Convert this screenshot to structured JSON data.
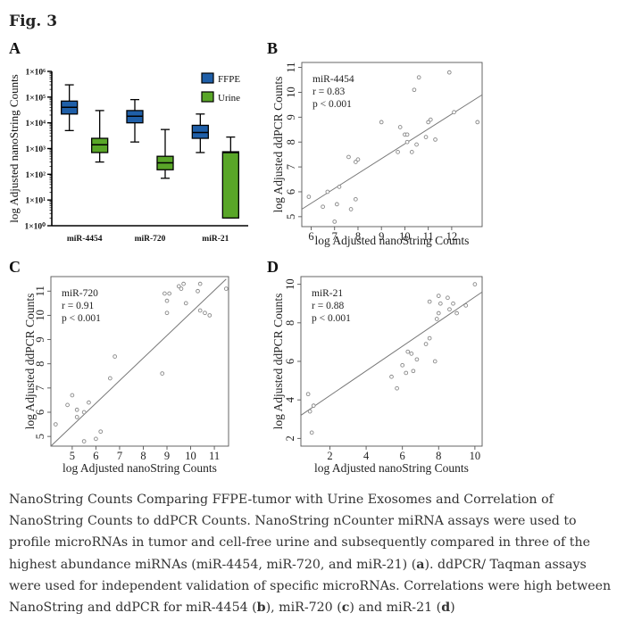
{
  "figure": {
    "title": "Fig. 3"
  },
  "chart_data": [
    {
      "panel": "A",
      "type": "box",
      "ylabel": "log Adjusted nanoString Counts",
      "yscale": "log10",
      "ylim": [
        1,
        1000000
      ],
      "ytick_labels": [
        "1×10⁰",
        "1×10¹",
        "1×10²",
        "1×10³",
        "1×10⁴",
        "1×10⁵",
        "1×10⁶"
      ],
      "categories": [
        "miR-4454",
        "miR-720",
        "miR-21"
      ],
      "legend": [
        {
          "name": "FFPE",
          "color": "#1f5fa8"
        },
        {
          "name": "Urine",
          "color": "#59a628"
        }
      ],
      "series": [
        {
          "name": "FFPE",
          "color": "#1f5fa8",
          "boxes": [
            {
              "whislo": 5000,
              "q1": 22000,
              "med": 40000,
              "q3": 70000,
              "whishi": 300000
            },
            {
              "whislo": 1800,
              "q1": 10000,
              "med": 18000,
              "q3": 30000,
              "whishi": 80000
            },
            {
              "whislo": 700,
              "q1": 2500,
              "med": 4200,
              "q3": 8000,
              "whishi": 22000
            }
          ]
        },
        {
          "name": "Urine",
          "color": "#59a628",
          "boxes": [
            {
              "whislo": 300,
              "q1": 700,
              "med": 1400,
              "q3": 2500,
              "whishi": 30000
            },
            {
              "whislo": 70,
              "q1": 150,
              "med": 280,
              "q3": 500,
              "whishi": 5500
            },
            {
              "whislo": 2,
              "q1": 2,
              "med": 700,
              "q3": 750,
              "whishi": 2800
            }
          ]
        }
      ]
    },
    {
      "panel": "B",
      "type": "scatter",
      "annotation": [
        "miR-4454",
        "r = 0.83",
        "p < 0.001"
      ],
      "xlabel": "log Adjusted nanoString Counts",
      "ylabel": "log Adjusted ddPCR Counts",
      "xlim": [
        5.6,
        13.3
      ],
      "ylim": [
        4.6,
        11.2
      ],
      "xticks": [
        6,
        7,
        8,
        9,
        10,
        11,
        12
      ],
      "yticks": [
        5,
        6,
        7,
        8,
        9,
        10,
        11
      ],
      "fit": [
        [
          5.6,
          5.3
        ],
        [
          13.3,
          9.9
        ]
      ],
      "x": [
        5.9,
        6.5,
        6.7,
        7.1,
        7.2,
        7.0,
        7.6,
        7.7,
        7.9,
        8.0,
        7.9,
        9.0,
        9.7,
        9.8,
        10.0,
        10.1,
        10.1,
        10.3,
        10.4,
        10.5,
        10.6,
        10.9,
        11.0,
        11.1,
        11.3,
        11.9,
        12.1,
        13.1
      ],
      "y": [
        5.8,
        5.4,
        6.0,
        5.5,
        6.2,
        4.8,
        7.4,
        5.3,
        7.2,
        7.3,
        5.7,
        8.8,
        7.6,
        8.6,
        8.3,
        8.0,
        8.3,
        7.6,
        10.1,
        7.9,
        10.6,
        8.2,
        8.8,
        8.9,
        8.1,
        10.8,
        9.2,
        8.8
      ]
    },
    {
      "panel": "C",
      "type": "scatter",
      "annotation": [
        "miR-720",
        "r = 0.91",
        "p < 0.001"
      ],
      "xlabel": "log Adjusted nanoString Counts",
      "ylabel": "log Adjusted ddPCR Counts",
      "xlim": [
        4.1,
        11.6
      ],
      "ylim": [
        4.6,
        11.6
      ],
      "xticks": [
        5,
        6,
        7,
        8,
        9,
        10,
        11
      ],
      "yticks": [
        5,
        6,
        7,
        8,
        9,
        10,
        11
      ],
      "fit": [
        [
          4.1,
          4.6
        ],
        [
          11.5,
          11.5
        ]
      ],
      "x": [
        4.3,
        4.8,
        5.0,
        5.2,
        5.2,
        5.5,
        5.5,
        5.7,
        6.0,
        6.2,
        6.6,
        6.8,
        8.8,
        8.9,
        9.0,
        9.0,
        9.1,
        9.5,
        9.6,
        9.7,
        9.8,
        10.3,
        10.4,
        10.4,
        10.6,
        10.8,
        11.5
      ],
      "y": [
        5.5,
        6.3,
        6.7,
        5.8,
        6.1,
        4.8,
        6.0,
        6.4,
        4.9,
        5.2,
        7.4,
        8.3,
        7.6,
        10.9,
        10.1,
        10.6,
        10.9,
        11.2,
        11.1,
        11.3,
        10.5,
        11.0,
        11.3,
        10.2,
        10.1,
        10.0,
        11.1
      ]
    },
    {
      "panel": "D",
      "type": "scatter",
      "annotation": [
        "miR-21",
        "r = 0.88",
        "p < 0.001"
      ],
      "xlabel": "log Adjusted nanoString Counts",
      "ylabel": "log Adjusted ddPCR Counts",
      "xlim": [
        0.4,
        10.4
      ],
      "ylim": [
        1.6,
        10.4
      ],
      "xticks": [
        2,
        4,
        6,
        8,
        10
      ],
      "yticks": [
        2,
        4,
        6,
        8,
        10
      ],
      "fit": [
        [
          0.4,
          3.2
        ],
        [
          10.4,
          9.6
        ]
      ],
      "x": [
        0.8,
        0.9,
        1.0,
        1.1,
        5.4,
        5.7,
        6.0,
        6.2,
        6.3,
        6.5,
        6.6,
        6.8,
        7.3,
        7.5,
        7.5,
        7.8,
        7.9,
        8.0,
        8.0,
        8.1,
        8.5,
        8.6,
        8.8,
        9.0,
        9.5,
        10.0
      ],
      "y": [
        4.3,
        3.4,
        2.3,
        3.7,
        5.2,
        4.6,
        5.8,
        5.4,
        6.5,
        6.4,
        5.5,
        6.1,
        6.9,
        7.2,
        9.1,
        6.0,
        8.2,
        8.5,
        9.4,
        9.0,
        9.3,
        8.7,
        9.0,
        8.5,
        8.9,
        10.0
      ]
    }
  ],
  "caption": {
    "text": "NanoString Counts Comparing FFPE-tumor with Urine Exosomes and Correlation of NanoString Counts to ddPCR Counts. NanoString nCounter miRNA assays were used to profile microRNAs in tumor and cell-free urine and subsequently compared in three of the highest abundance miRNAs (miR-4454, miR-720, and miR-21) (",
    "ref_a": "a",
    "text_2": "). ddPCR/ Taqman assays were used for independent validation of specific microRNAs. Correlations were high between NanoString and ddPCR for miR-4454 (",
    "ref_b": "b",
    "text_3": "), miR-720 (",
    "ref_c": "c",
    "text_4": ") and miR-21 (",
    "ref_d": "d",
    "text_5": ")"
  }
}
